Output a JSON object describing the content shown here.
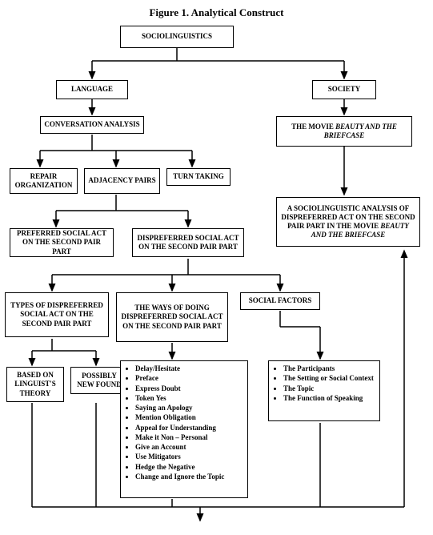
{
  "title": "Figure 1. Analytical Construct",
  "root": "SOCIOLINGUISTICS",
  "language": "LANGUAGE",
  "society": "SOCIETY",
  "conv": "CONVERSATION ANALYSIS",
  "movie": "THE MOVIE BEAUTY AND THE BRIEFCASE",
  "repair": "REPAIR ORGANIZATION",
  "adjacency": "ADJACENCY PAIRS",
  "turn": "TURN TAKING",
  "analysis": "A SOCIOLINGUISTIC ANALYSIS OF DISPREFERRED ACT ON THE SECOND PAIR PART IN THE MOVIE BEAUTY AND THE BRIEFCASE",
  "preferred": "PREFERRED SOCIAL ACT ON THE SECOND PAIR PART",
  "dispreferred": "DISPREFERRED SOCIAL ACT ON THE SECOND PAIR PART",
  "types": "TYPES OF DISPREFERRED SOCIAL ACT ON THE SECOND PAIR PART",
  "ways": "THE WAYS OF DOING DISPREFERRED SOCIAL ACT ON THE SECOND PAIR PART",
  "socialFactors": "SOCIAL FACTORS",
  "based": "BASED ON LINGUIST'S THEORY",
  "newFound": "POSSIBLY NEW FOUND",
  "waysList": [
    "Delay/Hesitate",
    "Preface",
    "Express Doubt",
    "Token Yes",
    "Saying an Apology",
    "Mention Obligation",
    "Appeal for Understanding",
    "Make it Non – Personal",
    "Give an Account",
    "Use Mitigators",
    "Hedge the Negative",
    "Change and Ignore the Topic"
  ],
  "factorsList": [
    "The Participants",
    "The Setting or Social Context",
    "The Topic",
    "The Function of Speaking"
  ]
}
